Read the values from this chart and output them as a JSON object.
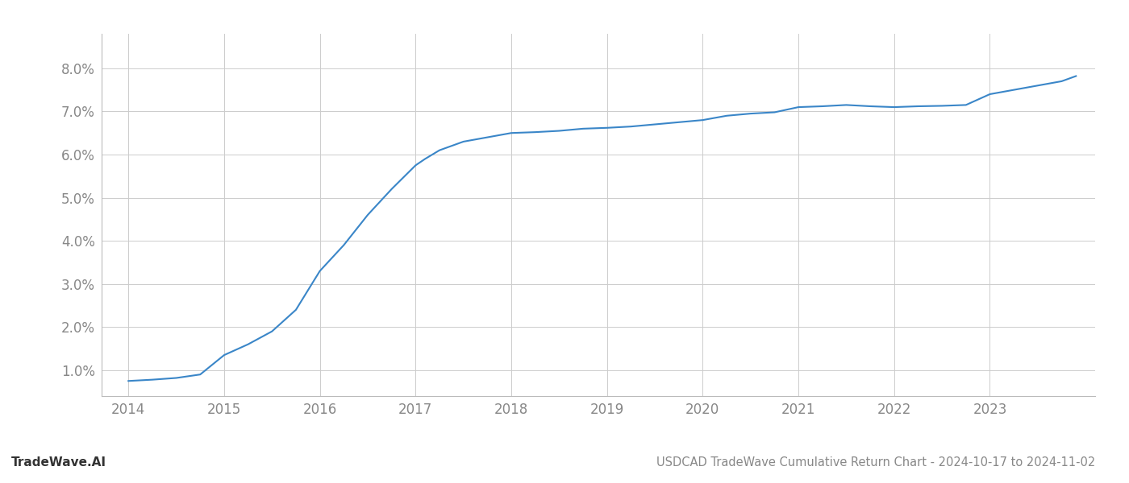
{
  "x_values": [
    2014.0,
    2014.25,
    2014.5,
    2014.75,
    2015.0,
    2015.25,
    2015.5,
    2015.75,
    2016.0,
    2016.25,
    2016.5,
    2016.75,
    2017.0,
    2017.1,
    2017.25,
    2017.5,
    2017.75,
    2018.0,
    2018.25,
    2018.5,
    2018.75,
    2019.0,
    2019.25,
    2019.5,
    2019.75,
    2020.0,
    2020.25,
    2020.5,
    2020.75,
    2021.0,
    2021.25,
    2021.5,
    2021.75,
    2022.0,
    2022.25,
    2022.5,
    2022.75,
    2023.0,
    2023.25,
    2023.5,
    2023.75,
    2023.9
  ],
  "y_values": [
    0.0075,
    0.0078,
    0.0082,
    0.009,
    0.0135,
    0.016,
    0.019,
    0.024,
    0.033,
    0.039,
    0.046,
    0.052,
    0.0575,
    0.059,
    0.061,
    0.063,
    0.064,
    0.065,
    0.0652,
    0.0655,
    0.066,
    0.0662,
    0.0665,
    0.067,
    0.0675,
    0.068,
    0.069,
    0.0695,
    0.0698,
    0.071,
    0.0712,
    0.0715,
    0.0712,
    0.071,
    0.0712,
    0.0713,
    0.0715,
    0.074,
    0.075,
    0.076,
    0.077,
    0.0782
  ],
  "line_color": "#3a86c8",
  "line_width": 1.5,
  "background_color": "#ffffff",
  "grid_color": "#cccccc",
  "title": "USDCAD TradeWave Cumulative Return Chart - 2024-10-17 to 2024-11-02",
  "title_fontsize": 10.5,
  "watermark": "TradeWave.AI",
  "watermark_fontsize": 11,
  "ylim": [
    0.004,
    0.088
  ],
  "xlim": [
    2013.72,
    2024.1
  ],
  "ytick_labels": [
    "1.0%",
    "2.0%",
    "3.0%",
    "4.0%",
    "5.0%",
    "6.0%",
    "7.0%",
    "8.0%"
  ],
  "ytick_values": [
    0.01,
    0.02,
    0.03,
    0.04,
    0.05,
    0.06,
    0.07,
    0.08
  ],
  "xtick_labels": [
    "2014",
    "2015",
    "2016",
    "2017",
    "2018",
    "2019",
    "2020",
    "2021",
    "2022",
    "2023"
  ],
  "xtick_values": [
    2014,
    2015,
    2016,
    2017,
    2018,
    2019,
    2020,
    2021,
    2022,
    2023
  ],
  "tick_label_color": "#888888",
  "tick_label_fontsize": 12,
  "spine_color": "#bbbbbb",
  "watermark_color": "#333333",
  "title_color": "#888888"
}
